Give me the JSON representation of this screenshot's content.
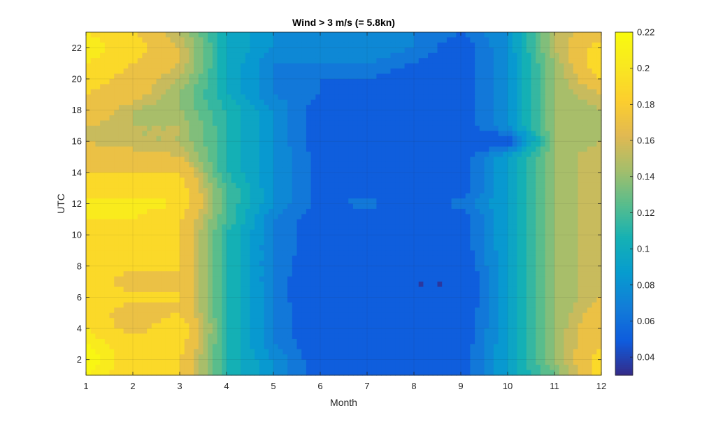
{
  "chart_data": {
    "type": "heatmap",
    "subtype": "filled-contour",
    "title": "Wind > 3 m/s (= 5.8kn)",
    "xlabel": "Month",
    "ylabel": "UTC",
    "x": [
      1,
      2,
      3,
      4,
      5,
      6,
      7,
      8,
      9,
      10,
      11,
      12
    ],
    "y": [
      1,
      2,
      3,
      4,
      5,
      6,
      7,
      8,
      9,
      10,
      11,
      12,
      13,
      14,
      15,
      16,
      17,
      18,
      19,
      20,
      21,
      22,
      23
    ],
    "xlim": [
      1,
      12
    ],
    "ylim": [
      1,
      23
    ],
    "xticks": [
      "1",
      "2",
      "3",
      "4",
      "5",
      "6",
      "7",
      "8",
      "9",
      "10",
      "11",
      "12"
    ],
    "yticks": [
      "2",
      "4",
      "6",
      "8",
      "10",
      "12",
      "14",
      "16",
      "18",
      "20",
      "22"
    ],
    "colorbar": {
      "min": 0.03,
      "max": 0.22,
      "ticks": [
        "0.04",
        "0.06",
        "0.08",
        "0.1",
        "0.12",
        "0.14",
        "0.16",
        "0.18",
        "0.2",
        "0.22"
      ],
      "colormap": "parula"
    },
    "levels": [
      0.04,
      0.06,
      0.07,
      0.08,
      0.09,
      0.1,
      0.11,
      0.12,
      0.13,
      0.14,
      0.15,
      0.16,
      0.18,
      0.2,
      0.21
    ],
    "grid": true,
    "note_values": "z[hour][month], rows are UTC hours 1..23, columns are months 1..12 (estimated from contour colors)",
    "z": [
      [
        0.21,
        0.19,
        0.18,
        0.11,
        0.08,
        0.05,
        0.06,
        0.05,
        0.05,
        0.09,
        0.13,
        0.19
      ],
      [
        0.22,
        0.19,
        0.18,
        0.11,
        0.08,
        0.05,
        0.05,
        0.05,
        0.05,
        0.09,
        0.14,
        0.19
      ],
      [
        0.21,
        0.19,
        0.19,
        0.11,
        0.07,
        0.05,
        0.05,
        0.05,
        0.05,
        0.09,
        0.14,
        0.18
      ],
      [
        0.2,
        0.17,
        0.2,
        0.11,
        0.07,
        0.045,
        0.05,
        0.045,
        0.045,
        0.09,
        0.14,
        0.18
      ],
      [
        0.2,
        0.16,
        0.18,
        0.11,
        0.07,
        0.045,
        0.045,
        0.045,
        0.045,
        0.09,
        0.14,
        0.17
      ],
      [
        0.19,
        0.19,
        0.18,
        0.11,
        0.07,
        0.04,
        0.045,
        0.04,
        0.04,
        0.09,
        0.14,
        0.16
      ],
      [
        0.2,
        0.16,
        0.18,
        0.11,
        0.07,
        0.04,
        0.045,
        0.04,
        0.04,
        0.09,
        0.14,
        0.16
      ],
      [
        0.19,
        0.19,
        0.18,
        0.11,
        0.07,
        0.045,
        0.045,
        0.045,
        0.045,
        0.09,
        0.14,
        0.16
      ],
      [
        0.19,
        0.19,
        0.18,
        0.11,
        0.07,
        0.05,
        0.05,
        0.05,
        0.05,
        0.09,
        0.14,
        0.16
      ],
      [
        0.19,
        0.19,
        0.18,
        0.11,
        0.07,
        0.05,
        0.05,
        0.05,
        0.05,
        0.09,
        0.14,
        0.16
      ],
      [
        0.2,
        0.2,
        0.18,
        0.12,
        0.07,
        0.05,
        0.05,
        0.045,
        0.05,
        0.09,
        0.14,
        0.16
      ],
      [
        0.21,
        0.21,
        0.2,
        0.12,
        0.08,
        0.055,
        0.065,
        0.05,
        0.065,
        0.09,
        0.14,
        0.16
      ],
      [
        0.18,
        0.18,
        0.19,
        0.12,
        0.08,
        0.055,
        0.055,
        0.05,
        0.05,
        0.09,
        0.14,
        0.16
      ],
      [
        0.18,
        0.18,
        0.18,
        0.11,
        0.08,
        0.055,
        0.055,
        0.05,
        0.05,
        0.09,
        0.14,
        0.16
      ],
      [
        0.17,
        0.17,
        0.16,
        0.11,
        0.08,
        0.055,
        0.055,
        0.05,
        0.05,
        0.09,
        0.14,
        0.16
      ],
      [
        0.16,
        0.15,
        0.15,
        0.11,
        0.08,
        0.05,
        0.055,
        0.05,
        0.05,
        0.045,
        0.14,
        0.15
      ],
      [
        0.16,
        0.15,
        0.15,
        0.11,
        0.08,
        0.05,
        0.05,
        0.05,
        0.05,
        0.08,
        0.14,
        0.15
      ],
      [
        0.18,
        0.15,
        0.14,
        0.11,
        0.08,
        0.05,
        0.05,
        0.05,
        0.05,
        0.08,
        0.14,
        0.15
      ],
      [
        0.18,
        0.17,
        0.14,
        0.1,
        0.07,
        0.06,
        0.05,
        0.05,
        0.05,
        0.08,
        0.14,
        0.16
      ],
      [
        0.19,
        0.17,
        0.15,
        0.1,
        0.07,
        0.06,
        0.06,
        0.05,
        0.05,
        0.08,
        0.14,
        0.18
      ],
      [
        0.2,
        0.18,
        0.16,
        0.1,
        0.07,
        0.07,
        0.07,
        0.06,
        0.05,
        0.08,
        0.14,
        0.2
      ],
      [
        0.21,
        0.19,
        0.16,
        0.1,
        0.08,
        0.07,
        0.08,
        0.07,
        0.05,
        0.08,
        0.15,
        0.19
      ],
      [
        0.2,
        0.18,
        0.15,
        0.1,
        0.08,
        0.07,
        0.08,
        0.07,
        0.06,
        0.08,
        0.15,
        0.17
      ]
    ]
  }
}
